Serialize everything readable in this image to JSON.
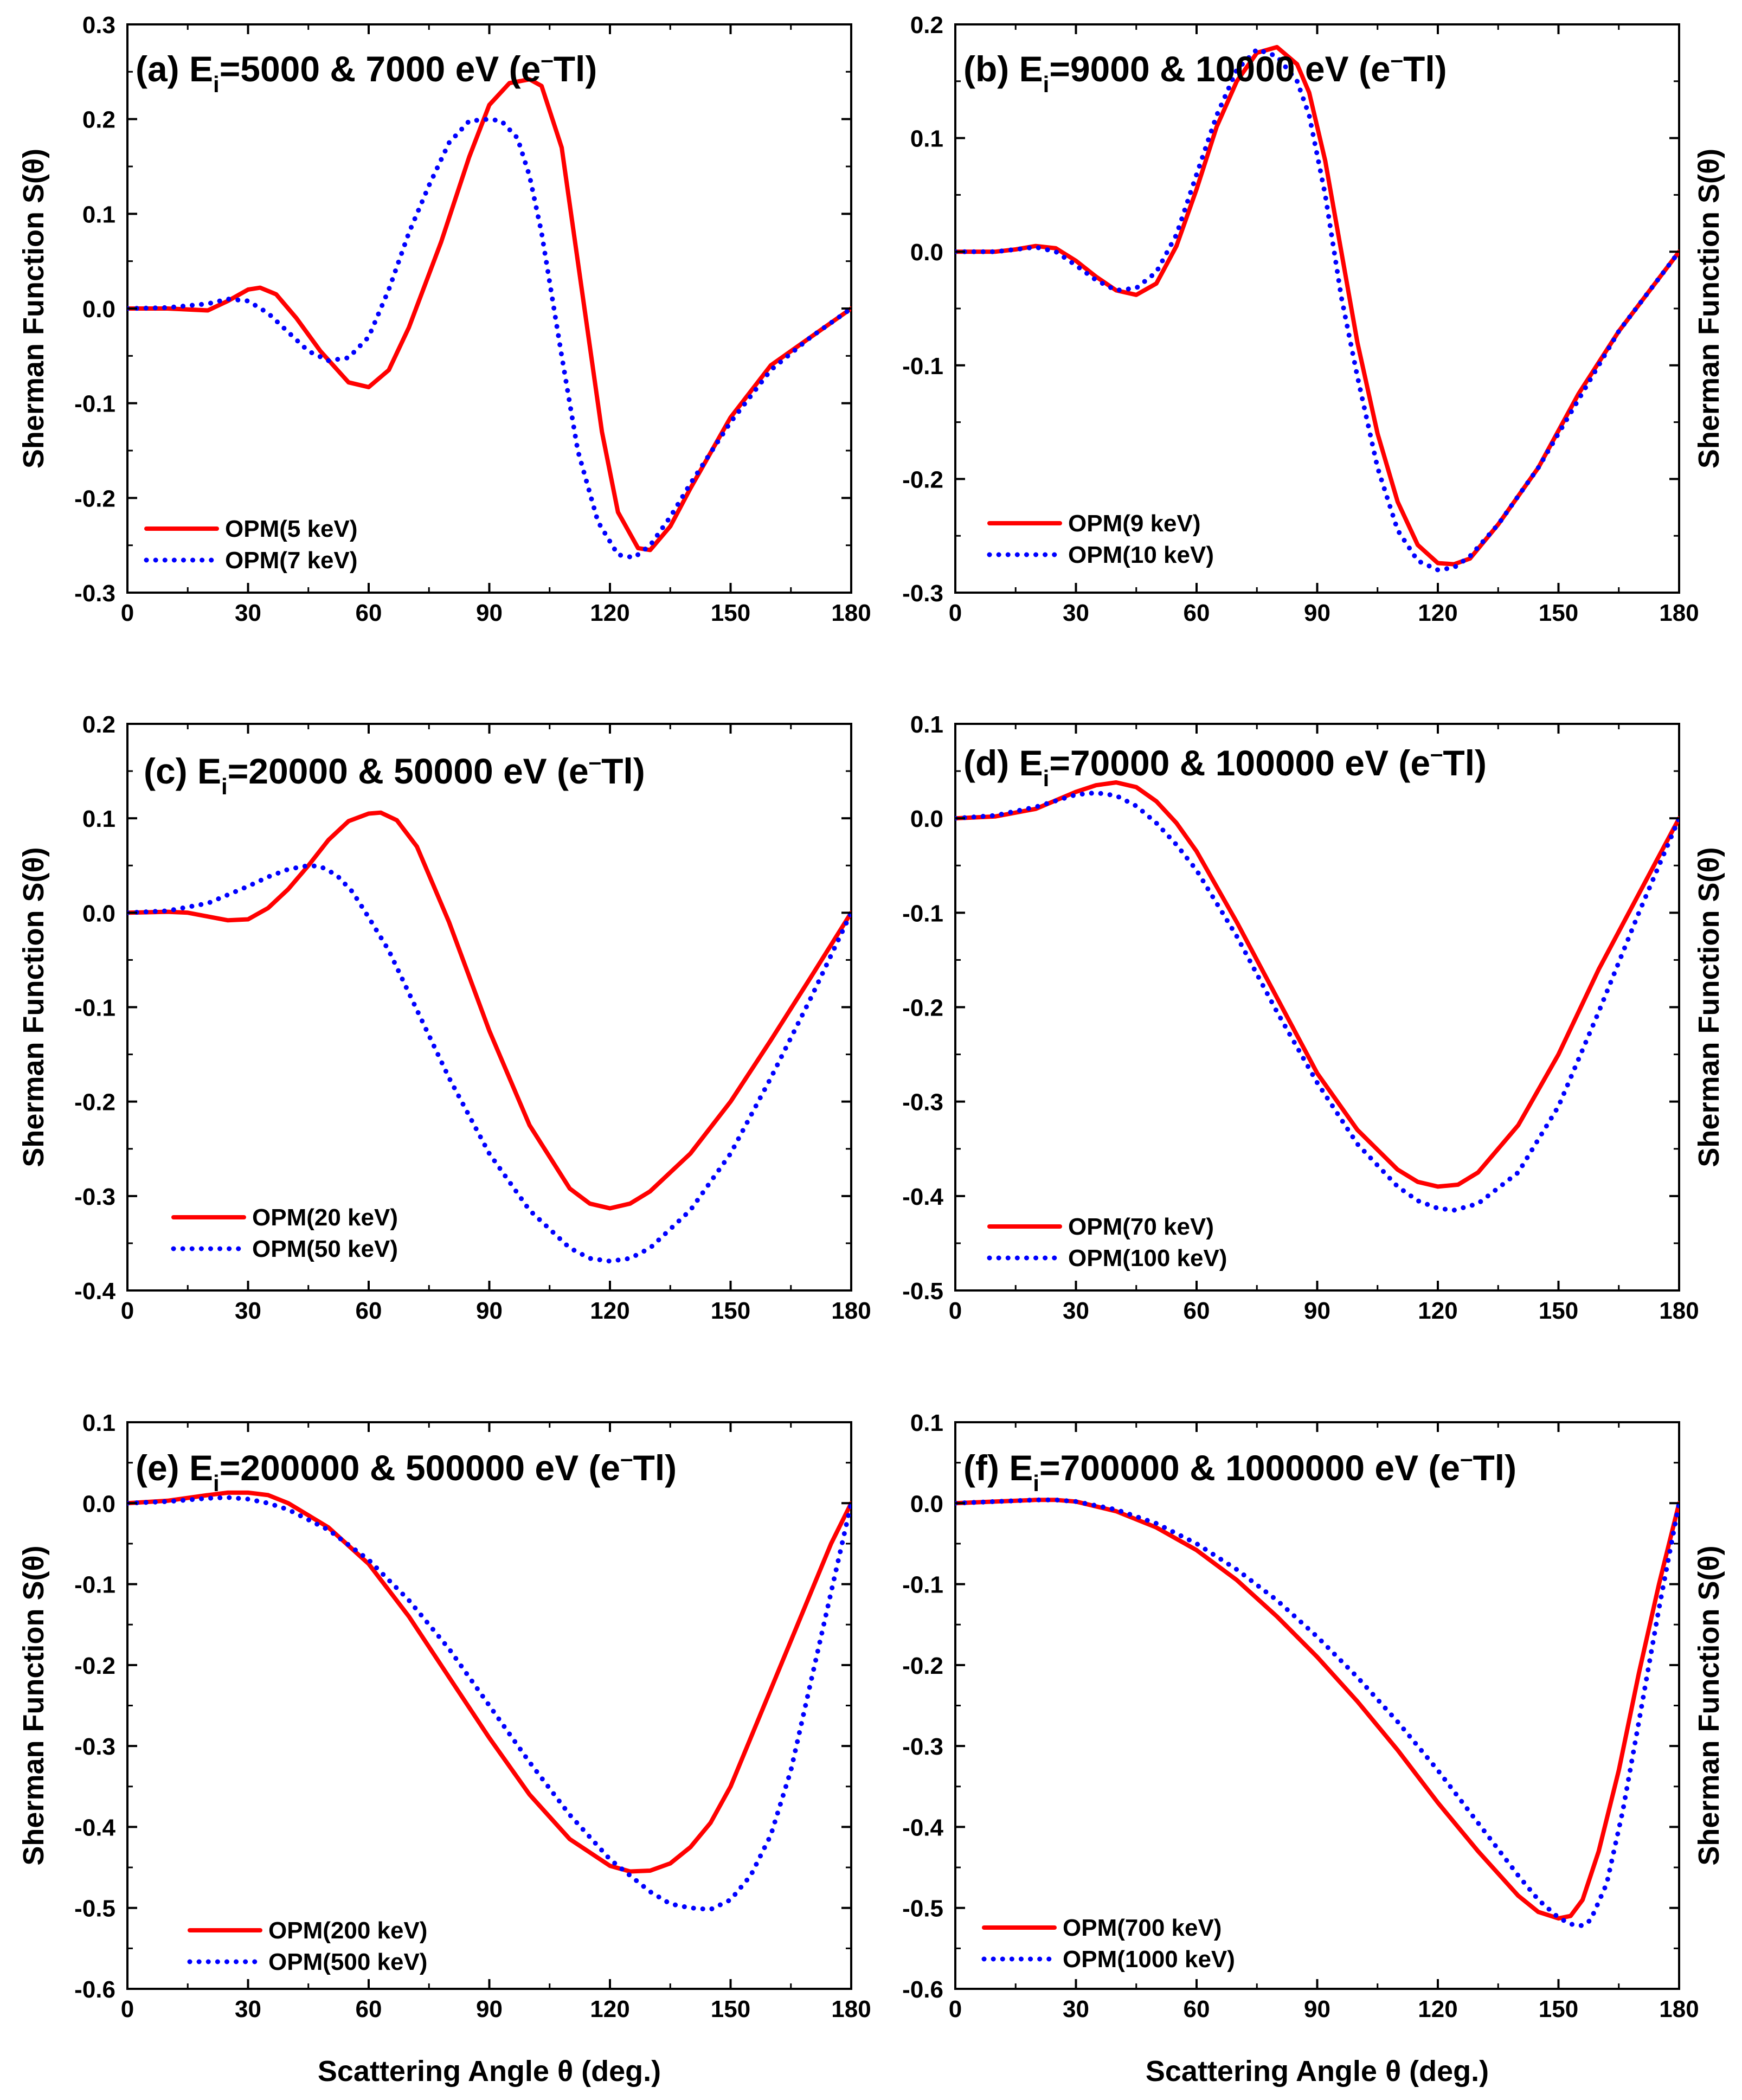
{
  "colors": {
    "series1": "#ff0000",
    "series2": "#0000ff",
    "axis": "#000000"
  },
  "chart_data": [
    {
      "panel": "a",
      "type": "line",
      "title": "(a) E",
      "title_sub": "i",
      "title_rest": "=5000 & 7000 eV (e",
      "title_sup": "–",
      "title_end": "Tl)",
      "xlabel": "",
      "ylabel": "Sherman Function S(θ)",
      "ylabel_side": "left",
      "xlim": [
        0,
        180
      ],
      "ylim": [
        -0.3,
        0.3
      ],
      "xticks": [
        0,
        30,
        60,
        90,
        120,
        150,
        180
      ],
      "yticks": [
        -0.3,
        -0.2,
        -0.1,
        0.0,
        0.1,
        0.2,
        0.3
      ],
      "ytick_labels": [
        "-0.3",
        "-0.2",
        "-0.1",
        "0.0",
        "0.1",
        "0.2",
        "0.3"
      ],
      "legend_position": "bottom-left",
      "series": [
        {
          "name": "OPM(5 keV)",
          "style": "solid",
          "x": [
            0,
            10,
            20,
            25,
            30,
            33,
            37,
            42,
            48,
            55,
            60,
            65,
            70,
            78,
            85,
            90,
            95,
            100,
            103,
            108,
            113,
            118,
            122,
            127,
            130,
            135,
            140,
            150,
            160,
            170,
            180
          ],
          "y": [
            0.0,
            0.0,
            -0.002,
            0.008,
            0.02,
            0.022,
            0.015,
            -0.01,
            -0.045,
            -0.078,
            -0.083,
            -0.065,
            -0.02,
            0.07,
            0.16,
            0.215,
            0.238,
            0.242,
            0.235,
            0.17,
            0.02,
            -0.13,
            -0.215,
            -0.253,
            -0.255,
            -0.23,
            -0.19,
            -0.115,
            -0.06,
            -0.03,
            0.0
          ]
        },
        {
          "name": "OPM(7 keV)",
          "style": "dotted",
          "x": [
            0,
            10,
            20,
            25,
            30,
            35,
            40,
            45,
            50,
            55,
            60,
            65,
            70,
            75,
            80,
            85,
            90,
            93,
            97,
            100,
            103,
            108,
            112,
            117,
            122,
            126,
            130,
            135,
            140,
            150,
            160,
            170,
            180
          ],
          "y": [
            0.0,
            0.001,
            0.005,
            0.01,
            0.008,
            -0.005,
            -0.025,
            -0.045,
            -0.055,
            -0.052,
            -0.03,
            0.02,
            0.08,
            0.13,
            0.175,
            0.198,
            0.2,
            0.198,
            0.18,
            0.14,
            0.08,
            -0.05,
            -0.15,
            -0.225,
            -0.26,
            -0.263,
            -0.25,
            -0.22,
            -0.185,
            -0.12,
            -0.065,
            -0.03,
            0.0
          ]
        }
      ]
    },
    {
      "panel": "b",
      "type": "line",
      "title": "(b) E",
      "title_sub": "i",
      "title_rest": "=9000 & 10000 eV (e",
      "title_sup": "–",
      "title_end": "Tl)",
      "xlabel": "",
      "ylabel": "Sherman Function S(θ)",
      "ylabel_side": "right",
      "xlim": [
        0,
        180
      ],
      "ylim": [
        -0.3,
        0.2
      ],
      "xticks": [
        0,
        30,
        60,
        90,
        120,
        150,
        180
      ],
      "yticks": [
        -0.3,
        -0.2,
        -0.1,
        0.0,
        0.1,
        0.2
      ],
      "ytick_labels": [
        "-0.3",
        "-0.2",
        "-0.1",
        "0.0",
        "0.1",
        "0.2"
      ],
      "legend_position": "bottom-left",
      "series": [
        {
          "name": "OPM(9 keV)",
          "style": "solid",
          "x": [
            0,
            10,
            15,
            20,
            25,
            30,
            35,
            40,
            45,
            50,
            55,
            60,
            65,
            70,
            75,
            80,
            85,
            88,
            92,
            96,
            100,
            105,
            110,
            115,
            120,
            124,
            128,
            135,
            145,
            155,
            165,
            180
          ],
          "y": [
            0.0,
            0.0,
            0.002,
            0.005,
            0.003,
            -0.008,
            -0.022,
            -0.034,
            -0.038,
            -0.028,
            0.005,
            0.055,
            0.11,
            0.15,
            0.175,
            0.18,
            0.165,
            0.14,
            0.08,
            0.0,
            -0.08,
            -0.16,
            -0.22,
            -0.258,
            -0.274,
            -0.275,
            -0.27,
            -0.24,
            -0.19,
            -0.125,
            -0.07,
            0.0
          ]
        },
        {
          "name": "OPM(10 keV)",
          "style": "dotted",
          "x": [
            0,
            10,
            15,
            20,
            25,
            30,
            35,
            40,
            45,
            50,
            55,
            60,
            65,
            70,
            75,
            80,
            85,
            88,
            92,
            96,
            100,
            105,
            110,
            115,
            120,
            124,
            128,
            135,
            145,
            155,
            165,
            180
          ],
          "y": [
            0.0,
            0.0,
            0.002,
            0.004,
            0.0,
            -0.012,
            -0.025,
            -0.034,
            -0.032,
            -0.018,
            0.015,
            0.068,
            0.12,
            0.16,
            0.178,
            0.172,
            0.15,
            0.12,
            0.05,
            -0.04,
            -0.11,
            -0.19,
            -0.245,
            -0.272,
            -0.28,
            -0.278,
            -0.268,
            -0.24,
            -0.19,
            -0.13,
            -0.07,
            0.0
          ]
        }
      ]
    },
    {
      "panel": "c",
      "type": "line",
      "title": "(c) E",
      "title_sub": "i",
      "title_rest": "=20000 & 50000 eV (e",
      "title_sup": "–",
      "title_end": "Tl)",
      "xlabel": "",
      "ylabel": "Sherman Function S(θ)",
      "ylabel_side": "left",
      "xlim": [
        0,
        180
      ],
      "ylim": [
        -0.4,
        0.2
      ],
      "xticks": [
        0,
        30,
        60,
        90,
        120,
        150,
        180
      ],
      "yticks": [
        -0.4,
        -0.3,
        -0.2,
        -0.1,
        0.0,
        0.1,
        0.2
      ],
      "ytick_labels": [
        "-0.4",
        "-0.3",
        "-0.2",
        "-0.1",
        "0.0",
        "0.1",
        "0.2"
      ],
      "legend_position": "bottom-left",
      "series": [
        {
          "name": "OPM(20 keV)",
          "style": "solid",
          "x": [
            0,
            10,
            15,
            20,
            25,
            30,
            35,
            40,
            45,
            50,
            55,
            60,
            63,
            67,
            72,
            80,
            90,
            100,
            110,
            115,
            120,
            125,
            130,
            140,
            150,
            160,
            170,
            180
          ],
          "y": [
            0.0,
            0.001,
            0.0,
            -0.004,
            -0.008,
            -0.007,
            0.005,
            0.025,
            0.05,
            0.077,
            0.097,
            0.105,
            0.106,
            0.098,
            0.07,
            -0.01,
            -0.125,
            -0.225,
            -0.292,
            -0.308,
            -0.313,
            -0.308,
            -0.295,
            -0.255,
            -0.2,
            -0.135,
            -0.068,
            0.0
          ]
        },
        {
          "name": "OPM(50 keV)",
          "style": "dotted",
          "x": [
            0,
            10,
            20,
            30,
            35,
            40,
            45,
            48,
            52,
            56,
            60,
            65,
            70,
            80,
            90,
            100,
            110,
            115,
            120,
            125,
            130,
            140,
            150,
            160,
            170,
            180
          ],
          "y": [
            0.0,
            0.002,
            0.01,
            0.028,
            0.038,
            0.046,
            0.05,
            0.049,
            0.04,
            0.022,
            -0.005,
            -0.04,
            -0.085,
            -0.175,
            -0.255,
            -0.315,
            -0.355,
            -0.366,
            -0.369,
            -0.366,
            -0.355,
            -0.315,
            -0.255,
            -0.175,
            -0.09,
            0.0
          ]
        }
      ]
    },
    {
      "panel": "d",
      "type": "line",
      "title": "(d) E",
      "title_sub": "i",
      "title_rest": "=70000 & 100000 eV (e",
      "title_sup": "–",
      "title_end": "Tl)",
      "xlabel": "",
      "ylabel": "Sherman Function S(θ)",
      "ylabel_side": "right",
      "xlim": [
        0,
        180
      ],
      "ylim": [
        -0.5,
        0.1
      ],
      "xticks": [
        0,
        30,
        60,
        90,
        120,
        150,
        180
      ],
      "yticks": [
        -0.5,
        -0.4,
        -0.3,
        -0.2,
        -0.1,
        0.0,
        0.1
      ],
      "ytick_labels": [
        "-0.5",
        "-0.4",
        "-0.3",
        "-0.2",
        "-0.1",
        "0.0",
        "0.1"
      ],
      "legend_position": "bottom-left",
      "series": [
        {
          "name": "OPM(70 keV)",
          "style": "solid",
          "x": [
            0,
            10,
            20,
            30,
            35,
            40,
            45,
            50,
            55,
            60,
            70,
            80,
            90,
            100,
            110,
            115,
            120,
            125,
            130,
            140,
            150,
            160,
            170,
            180
          ],
          "y": [
            0.0,
            0.002,
            0.01,
            0.028,
            0.035,
            0.038,
            0.033,
            0.018,
            -0.005,
            -0.035,
            -0.11,
            -0.19,
            -0.27,
            -0.33,
            -0.372,
            -0.385,
            -0.39,
            -0.388,
            -0.375,
            -0.325,
            -0.25,
            -0.16,
            -0.08,
            0.0
          ]
        },
        {
          "name": "OPM(100 keV)",
          "style": "dotted",
          "x": [
            0,
            10,
            20,
            30,
            35,
            40,
            45,
            50,
            55,
            60,
            70,
            80,
            90,
            100,
            110,
            115,
            120,
            124,
            130,
            140,
            150,
            160,
            170,
            180
          ],
          "y": [
            0.0,
            0.003,
            0.012,
            0.025,
            0.027,
            0.024,
            0.013,
            -0.005,
            -0.028,
            -0.055,
            -0.125,
            -0.205,
            -0.28,
            -0.345,
            -0.39,
            -0.405,
            -0.413,
            -0.415,
            -0.408,
            -0.375,
            -0.305,
            -0.205,
            -0.1,
            0.0
          ]
        }
      ]
    },
    {
      "panel": "e",
      "type": "line",
      "title": "(e) E",
      "title_sub": "i",
      "title_rest": "=200000 & 500000 eV (e",
      "title_sup": "–",
      "title_end": "Tl)",
      "xlabel": "Scattering Angle θ (deg.)",
      "ylabel": "Sherman Function S(θ)",
      "ylabel_side": "left",
      "xlim": [
        0,
        180
      ],
      "ylim": [
        -0.6,
        0.1
      ],
      "xticks": [
        0,
        30,
        60,
        90,
        120,
        150,
        180
      ],
      "yticks": [
        -0.6,
        -0.5,
        -0.4,
        -0.3,
        -0.2,
        -0.1,
        0.0,
        0.1
      ],
      "ytick_labels": [
        "-0.6",
        "-0.5",
        "-0.4",
        "-0.3",
        "-0.2",
        "-0.1",
        "0.0",
        "0.1"
      ],
      "legend_position": "bottom-left",
      "series": [
        {
          "name": "OPM(200 keV)",
          "style": "solid",
          "x": [
            0,
            10,
            20,
            25,
            30,
            35,
            40,
            45,
            50,
            60,
            70,
            80,
            90,
            100,
            110,
            120,
            125,
            130,
            135,
            140,
            145,
            150,
            160,
            170,
            175,
            180
          ],
          "y": [
            0.0,
            0.003,
            0.01,
            0.013,
            0.013,
            0.01,
            0.0,
            -0.015,
            -0.03,
            -0.075,
            -0.14,
            -0.215,
            -0.29,
            -0.36,
            -0.415,
            -0.448,
            -0.455,
            -0.454,
            -0.445,
            -0.425,
            -0.395,
            -0.35,
            -0.23,
            -0.11,
            -0.05,
            0.0
          ]
        },
        {
          "name": "OPM(500 keV)",
          "style": "dotted",
          "x": [
            0,
            10,
            20,
            25,
            30,
            35,
            40,
            50,
            60,
            70,
            80,
            90,
            100,
            110,
            120,
            130,
            135,
            140,
            145,
            150,
            155,
            160,
            165,
            170,
            175,
            180
          ],
          "y": [
            0.0,
            0.002,
            0.006,
            0.007,
            0.005,
            0.0,
            -0.008,
            -0.033,
            -0.07,
            -0.12,
            -0.18,
            -0.25,
            -0.32,
            -0.385,
            -0.44,
            -0.48,
            -0.495,
            -0.5,
            -0.502,
            -0.49,
            -0.46,
            -0.41,
            -0.33,
            -0.22,
            -0.11,
            0.0
          ]
        }
      ]
    },
    {
      "panel": "f",
      "type": "line",
      "title": "(f) E",
      "title_sub": "i",
      "title_rest": "=700000 & 1000000 eV (e",
      "title_sup": "–",
      "title_end": "Tl)",
      "xlabel": "Scattering Angle θ (deg.)",
      "ylabel": "Sherman Function S(θ)",
      "ylabel_side": "right",
      "xlim": [
        0,
        180
      ],
      "ylim": [
        -0.6,
        0.1
      ],
      "xticks": [
        0,
        30,
        60,
        90,
        120,
        150,
        180
      ],
      "yticks": [
        -0.6,
        -0.5,
        -0.4,
        -0.3,
        -0.2,
        -0.1,
        0.0,
        0.1
      ],
      "ytick_labels": [
        "-0.6",
        "-0.5",
        "-0.4",
        "-0.3",
        "-0.2",
        "-0.1",
        "0.0",
        "0.1"
      ],
      "legend_position": "bottom-left",
      "series": [
        {
          "name": "OPM(700 keV)",
          "style": "solid",
          "x": [
            0,
            10,
            20,
            25,
            30,
            40,
            50,
            60,
            70,
            80,
            90,
            100,
            110,
            120,
            130,
            140,
            145,
            150,
            153,
            156,
            160,
            165,
            170,
            175,
            180
          ],
          "y": [
            0.0,
            0.002,
            0.004,
            0.004,
            0.002,
            -0.01,
            -0.03,
            -0.058,
            -0.095,
            -0.14,
            -0.19,
            -0.245,
            -0.305,
            -0.37,
            -0.43,
            -0.485,
            -0.505,
            -0.513,
            -0.51,
            -0.49,
            -0.43,
            -0.33,
            -0.21,
            -0.1,
            0.0
          ]
        },
        {
          "name": "OPM(1000 keV)",
          "style": "dotted",
          "x": [
            0,
            10,
            20,
            25,
            30,
            40,
            50,
            60,
            70,
            80,
            90,
            100,
            110,
            120,
            130,
            140,
            145,
            150,
            153,
            156,
            158,
            162,
            166,
            170,
            175,
            180
          ],
          "y": [
            0.0,
            0.002,
            0.004,
            0.004,
            0.002,
            -0.008,
            -0.025,
            -0.05,
            -0.082,
            -0.12,
            -0.165,
            -0.215,
            -0.27,
            -0.33,
            -0.395,
            -0.46,
            -0.49,
            -0.512,
            -0.52,
            -0.522,
            -0.515,
            -0.47,
            -0.38,
            -0.27,
            -0.13,
            0.0
          ]
        }
      ]
    }
  ]
}
